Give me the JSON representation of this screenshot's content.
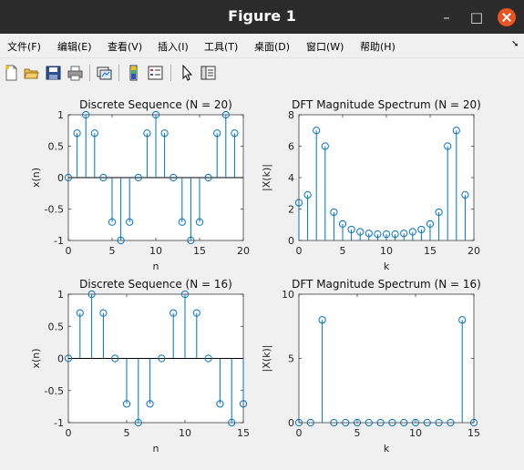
{
  "window": {
    "title": "Figure 1",
    "minimize": "–",
    "maximize": "□"
  },
  "menu": [
    "文件(F)",
    "编辑(E)",
    "查看(V)",
    "插入(I)",
    "工具(T)",
    "桌面(D)",
    "窗口(W)",
    "帮助(H)"
  ],
  "toolbar_icons": [
    "new-figure-icon",
    "open-file-icon",
    "save-icon",
    "print-icon",
    "link-plot-icon",
    "insert-colorbar-icon",
    "insert-legend-icon",
    "pointer-icon",
    "property-editor-icon"
  ],
  "colors": {
    "stem": "#0072bd",
    "axes_bg": "#ffffff",
    "baseline": "#000000"
  },
  "chart_data": [
    {
      "type": "stem",
      "title": "Discrete Sequence (N = 20)",
      "xlabel": "n",
      "ylabel": "x(n)",
      "xlim": [
        0,
        20
      ],
      "ylim": [
        -1,
        1
      ],
      "xticks": [
        "0",
        "5",
        "10",
        "15",
        "20"
      ],
      "yticks": [
        "-1",
        "-0.5",
        "0",
        "0.5",
        "1"
      ],
      "x": [
        0,
        1,
        2,
        3,
        4,
        5,
        6,
        7,
        8,
        9,
        10,
        11,
        12,
        13,
        14,
        15,
        16,
        17,
        18,
        19
      ],
      "values": [
        0,
        0.707,
        1,
        0.707,
        0,
        -0.707,
        -1,
        -0.707,
        0,
        0.707,
        1,
        0.707,
        0,
        -0.707,
        -1,
        -0.707,
        0,
        0.707,
        1,
        0.707
      ]
    },
    {
      "type": "stem",
      "title": "DFT Magnitude Spectrum (N = 20)",
      "xlabel": "k",
      "ylabel": "|X(k)|",
      "xlim": [
        0,
        20
      ],
      "ylim": [
        0,
        8
      ],
      "xticks": [
        "0",
        "5",
        "10",
        "15",
        "20"
      ],
      "yticks": [
        "0",
        "2",
        "4",
        "6",
        "8"
      ],
      "x": [
        0,
        1,
        2,
        3,
        4,
        5,
        6,
        7,
        8,
        9,
        10,
        11,
        12,
        13,
        14,
        15,
        16,
        17,
        18,
        19
      ],
      "values": [
        2.4,
        2.9,
        7.0,
        6.0,
        1.8,
        1.05,
        0.7,
        0.55,
        0.45,
        0.4,
        0.4,
        0.4,
        0.45,
        0.55,
        0.7,
        1.05,
        1.8,
        6.0,
        7.0,
        2.9
      ]
    },
    {
      "type": "stem",
      "title": "Discrete Sequence (N = 16)",
      "xlabel": "n",
      "ylabel": "x(n)",
      "xlim": [
        0,
        15
      ],
      "ylim": [
        -1,
        1
      ],
      "xticks": [
        "0",
        "5",
        "10",
        "15"
      ],
      "yticks": [
        "-1",
        "-0.5",
        "0",
        "0.5",
        "1"
      ],
      "x": [
        0,
        1,
        2,
        3,
        4,
        5,
        6,
        7,
        8,
        9,
        10,
        11,
        12,
        13,
        14,
        15
      ],
      "values": [
        0,
        0.707,
        1,
        0.707,
        0,
        -0.707,
        -1,
        -0.707,
        0,
        0.707,
        1,
        0.707,
        0,
        -0.707,
        -1,
        -0.707
      ]
    },
    {
      "type": "stem",
      "title": "DFT Magnitude Spectrum (N = 16)",
      "xlabel": "k",
      "ylabel": "|X(k)|",
      "xlim": [
        0,
        15
      ],
      "ylim": [
        0,
        10
      ],
      "xticks": [
        "0",
        "5",
        "10",
        "15"
      ],
      "yticks": [
        "0",
        "5",
        "10"
      ],
      "x": [
        0,
        1,
        2,
        3,
        4,
        5,
        6,
        7,
        8,
        9,
        10,
        11,
        12,
        13,
        14,
        15
      ],
      "values": [
        0,
        0,
        8,
        0,
        0,
        0,
        0,
        0,
        0,
        0,
        0,
        0,
        0,
        0,
        8,
        0
      ]
    }
  ]
}
